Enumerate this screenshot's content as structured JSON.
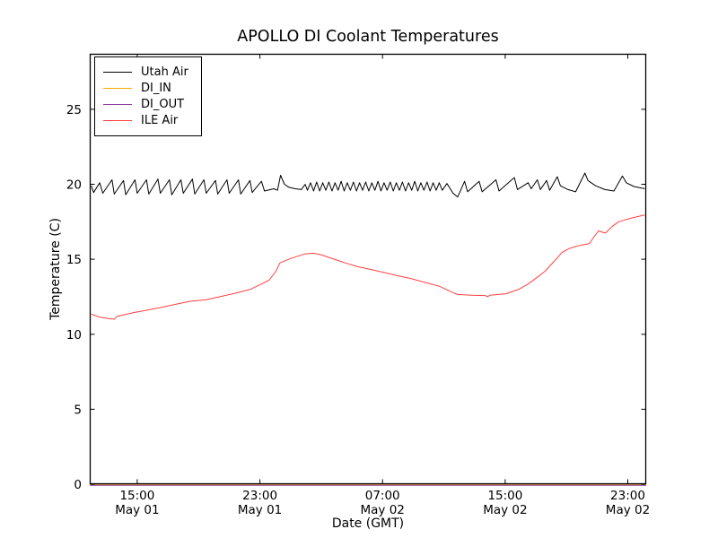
{
  "chart_data": {
    "type": "line",
    "title": "APOLLO DI Coolant Temperatures",
    "xlabel": "Date (GMT)",
    "ylabel": "Temperature (C)",
    "x_axis_note": "x values are hours elapsed after May 01 12:00 GMT; window spans ~May 01 12:00 to May 03 00:00",
    "xlim": [
      -0.1,
      36.2
    ],
    "ylim": [
      0,
      28.7
    ],
    "yticks": [
      0,
      5,
      10,
      15,
      20,
      25
    ],
    "xticks": [
      {
        "t": 3,
        "time": "15:00",
        "date": "May 01"
      },
      {
        "t": 11,
        "time": "23:00",
        "date": "May 01"
      },
      {
        "t": 19,
        "time": "07:00",
        "date": "May 02"
      },
      {
        "t": 27,
        "time": "15:00",
        "date": "May 02"
      },
      {
        "t": 35,
        "time": "23:00",
        "date": "May 02"
      }
    ],
    "grid": false,
    "legend_position": "upper left",
    "background_color": "#ffffff",
    "spine_color": "#000000",
    "series": [
      {
        "name": "Utah Air",
        "color": "#000000",
        "points": [
          [
            0,
            19.9
          ],
          [
            0.15,
            19.45
          ],
          [
            0.55,
            20.1
          ],
          [
            0.75,
            19.4
          ],
          [
            1.35,
            20.3
          ],
          [
            1.5,
            19.35
          ],
          [
            2.1,
            20.25
          ],
          [
            2.25,
            19.3
          ],
          [
            2.85,
            20.3
          ],
          [
            3,
            19.4
          ],
          [
            3.6,
            20.3
          ],
          [
            3.75,
            19.35
          ],
          [
            4.35,
            20.35
          ],
          [
            4.5,
            19.4
          ],
          [
            5.1,
            20.3
          ],
          [
            5.25,
            19.3
          ],
          [
            5.85,
            20.3
          ],
          [
            6,
            19.4
          ],
          [
            6.6,
            20.35
          ],
          [
            6.75,
            19.35
          ],
          [
            7.35,
            20.3
          ],
          [
            7.5,
            19.4
          ],
          [
            8.1,
            20.25
          ],
          [
            8.25,
            19.35
          ],
          [
            8.85,
            20.3
          ],
          [
            9,
            19.4
          ],
          [
            9.6,
            20.3
          ],
          [
            9.75,
            19.35
          ],
          [
            10.35,
            20.25
          ],
          [
            10.5,
            19.45
          ],
          [
            11.1,
            20.2
          ],
          [
            11.3,
            19.55
          ],
          [
            11.9,
            19.7
          ],
          [
            12.15,
            19.6
          ],
          [
            12.35,
            20.6
          ],
          [
            12.6,
            20
          ],
          [
            12.9,
            19.8
          ],
          [
            13.3,
            19.7
          ],
          [
            13.7,
            19.65
          ],
          [
            13.95,
            20
          ],
          [
            14.1,
            19.6
          ],
          [
            14.3,
            20.1
          ],
          [
            14.5,
            19.55
          ],
          [
            14.7,
            20.15
          ],
          [
            14.9,
            19.55
          ],
          [
            15.1,
            20.1
          ],
          [
            15.3,
            19.6
          ],
          [
            15.5,
            20.15
          ],
          [
            15.7,
            19.55
          ],
          [
            15.9,
            20.1
          ],
          [
            16.1,
            19.6
          ],
          [
            16.3,
            20.2
          ],
          [
            16.5,
            19.55
          ],
          [
            16.7,
            20.1
          ],
          [
            16.9,
            19.6
          ],
          [
            17.1,
            20.15
          ],
          [
            17.3,
            19.55
          ],
          [
            17.5,
            20.1
          ],
          [
            17.7,
            19.6
          ],
          [
            17.9,
            20.15
          ],
          [
            18.1,
            19.55
          ],
          [
            18.3,
            20.1
          ],
          [
            18.5,
            19.6
          ],
          [
            18.7,
            20.2
          ],
          [
            18.9,
            19.55
          ],
          [
            19.1,
            20.1
          ],
          [
            19.3,
            19.6
          ],
          [
            19.5,
            20.15
          ],
          [
            19.7,
            19.55
          ],
          [
            19.9,
            20.1
          ],
          [
            20.1,
            19.6
          ],
          [
            20.3,
            20.15
          ],
          [
            20.5,
            19.55
          ],
          [
            20.7,
            20.1
          ],
          [
            20.9,
            19.6
          ],
          [
            21.1,
            20.2
          ],
          [
            21.3,
            19.55
          ],
          [
            21.5,
            20.1
          ],
          [
            21.7,
            19.6
          ],
          [
            21.9,
            20.15
          ],
          [
            22.1,
            19.55
          ],
          [
            22.3,
            20.1
          ],
          [
            22.5,
            19.6
          ],
          [
            22.7,
            20.1
          ],
          [
            22.9,
            19.6
          ],
          [
            23.2,
            20.05
          ],
          [
            23.6,
            19.4
          ],
          [
            23.9,
            19.15
          ],
          [
            24.1,
            19.6
          ],
          [
            24.35,
            20.2
          ],
          [
            24.55,
            19.5
          ],
          [
            25.3,
            20.2
          ],
          [
            25.5,
            19.5
          ],
          [
            26.4,
            20.3
          ],
          [
            26.6,
            19.55
          ],
          [
            27.6,
            20.45
          ],
          [
            27.8,
            19.65
          ],
          [
            28.5,
            20.1
          ],
          [
            28.7,
            19.7
          ],
          [
            29.1,
            20.3
          ],
          [
            29.3,
            19.65
          ],
          [
            29.7,
            20.25
          ],
          [
            29.9,
            19.6
          ],
          [
            30.4,
            20.5
          ],
          [
            30.6,
            19.9
          ],
          [
            31.1,
            19.65
          ],
          [
            31.6,
            19.5
          ],
          [
            32.2,
            20.75
          ],
          [
            32.4,
            20.25
          ],
          [
            32.9,
            19.9
          ],
          [
            33.5,
            19.65
          ],
          [
            34.1,
            19.55
          ],
          [
            34.65,
            20.55
          ],
          [
            34.9,
            20.1
          ],
          [
            35.4,
            19.85
          ],
          [
            35.9,
            19.75
          ],
          [
            36.1,
            19.7
          ]
        ]
      },
      {
        "name": "DI_IN",
        "color": "#ffa500",
        "points": [
          [
            -0.1,
            0
          ],
          [
            36.2,
            0
          ]
        ]
      },
      {
        "name": "DI_OUT",
        "color": "#8b3a9e",
        "points": [
          [
            -0.1,
            0
          ],
          [
            36.2,
            0
          ]
        ]
      },
      {
        "name": "ILE Air",
        "color": "#ff4040",
        "points": [
          [
            0,
            11.35
          ],
          [
            0.5,
            11.15
          ],
          [
            1.1,
            11.05
          ],
          [
            1.5,
            11
          ],
          [
            1.7,
            11.2
          ],
          [
            2.8,
            11.45
          ],
          [
            3.6,
            11.6
          ],
          [
            4.6,
            11.8
          ],
          [
            5.75,
            12.05
          ],
          [
            6.45,
            12.2
          ],
          [
            7.5,
            12.3
          ],
          [
            8.4,
            12.5
          ],
          [
            9.25,
            12.7
          ],
          [
            10.4,
            13
          ],
          [
            11,
            13.3
          ],
          [
            11.6,
            13.6
          ],
          [
            12.05,
            14.2
          ],
          [
            12.3,
            14.75
          ],
          [
            13,
            15.05
          ],
          [
            13.9,
            15.35
          ],
          [
            14.5,
            15.4
          ],
          [
            15,
            15.3
          ],
          [
            15.85,
            15
          ],
          [
            16.6,
            14.75
          ],
          [
            17.4,
            14.5
          ],
          [
            18.3,
            14.3
          ],
          [
            19.2,
            14.1
          ],
          [
            20,
            13.9
          ],
          [
            20.9,
            13.7
          ],
          [
            21.8,
            13.45
          ],
          [
            22.7,
            13.2
          ],
          [
            23.55,
            12.8
          ],
          [
            23.9,
            12.65
          ],
          [
            24.8,
            12.6
          ],
          [
            25.7,
            12.58
          ],
          [
            25.85,
            12.5
          ],
          [
            26,
            12.6
          ],
          [
            27.05,
            12.7
          ],
          [
            27.9,
            13
          ],
          [
            28.5,
            13.35
          ],
          [
            29.1,
            13.8
          ],
          [
            29.6,
            14.2
          ],
          [
            30,
            14.65
          ],
          [
            30.5,
            15.2
          ],
          [
            30.7,
            15.45
          ],
          [
            31.15,
            15.7
          ],
          [
            31.6,
            15.85
          ],
          [
            32,
            15.95
          ],
          [
            32.5,
            16.05
          ],
          [
            32.8,
            16.5
          ],
          [
            33.1,
            16.9
          ],
          [
            33.35,
            16.8
          ],
          [
            33.55,
            16.75
          ],
          [
            34,
            17.2
          ],
          [
            34.4,
            17.5
          ],
          [
            35.25,
            17.75
          ],
          [
            36.1,
            17.95
          ]
        ]
      }
    ]
  }
}
